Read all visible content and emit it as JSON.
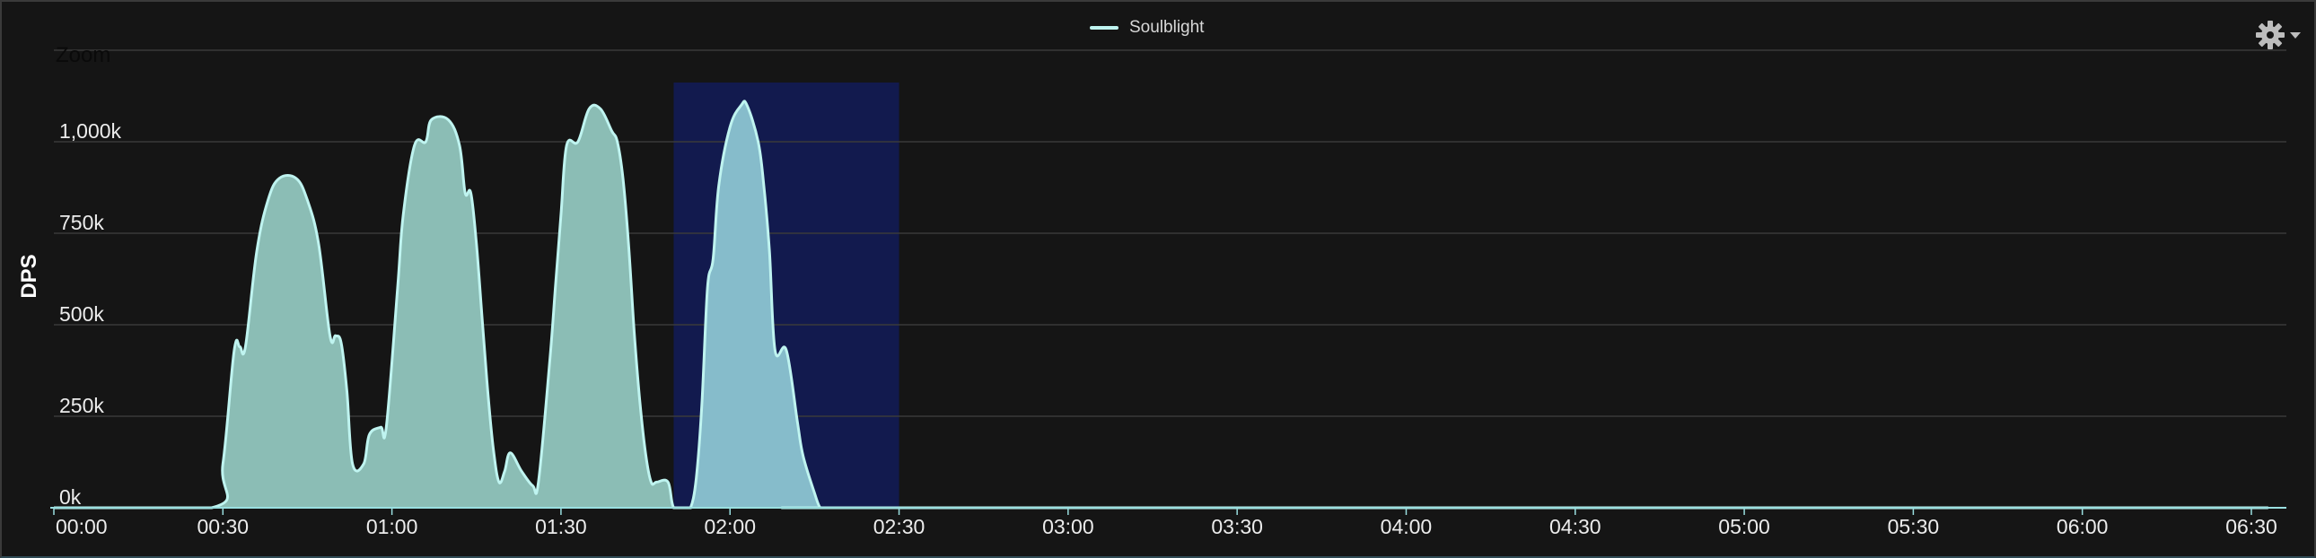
{
  "window": {
    "zoom_label": "Zoom",
    "settings_icon": "gear-icon",
    "dropdown_icon": "caret-down-icon"
  },
  "colors": {
    "background": "#151515",
    "grid": "#3a3a3a",
    "series_line": "#bff4f0",
    "series_fill": "#8bbdb5",
    "selection": "#121a4e",
    "selected_fill": "#86bccb"
  },
  "chart_data": {
    "type": "area",
    "title": "",
    "xlabel": "",
    "ylabel": "DPS",
    "ylim": [
      0,
      1250000
    ],
    "grid": true,
    "legend_position": "top-center",
    "x_ticks": [
      "00:00",
      "00:30",
      "01:00",
      "01:30",
      "02:00",
      "02:30",
      "03:00",
      "03:30",
      "04:00",
      "04:30",
      "05:00",
      "05:30",
      "06:00",
      "06:30"
    ],
    "y_ticks": [
      "0k",
      "250k",
      "500k",
      "750k",
      "1,000k"
    ],
    "selection": {
      "from": "01:50",
      "to": "02:30"
    },
    "series": [
      {
        "name": "Soulblight",
        "x": [
          "00:00",
          "00:28",
          "00:30",
          "00:32",
          "00:33",
          "00:34",
          "00:36",
          "00:38",
          "00:40",
          "00:43",
          "00:45",
          "00:47",
          "00:49",
          "00:50",
          "00:51",
          "00:52",
          "00:53",
          "00:55",
          "00:56",
          "00:58",
          "00:59",
          "01:01",
          "01:02",
          "01:04",
          "01:06",
          "01:07",
          "01:10",
          "01:12",
          "01:13",
          "01:14",
          "01:15",
          "01:16",
          "01:17",
          "01:18",
          "01:19",
          "01:20",
          "01:21",
          "01:23",
          "01:25",
          "01:26",
          "01:28",
          "01:29",
          "01:30",
          "01:31",
          "01:33",
          "01:35",
          "01:37",
          "01:39",
          "01:40",
          "01:41",
          "01:42",
          "01:43",
          "01:44",
          "01:45",
          "01:46",
          "01:47",
          "01:49",
          "01:50",
          "01:52",
          "01:53",
          "01:54",
          "01:55",
          "01:56",
          "01:57",
          "01:58",
          "02:00",
          "02:02",
          "02:03",
          "02:05",
          "02:06",
          "02:07",
          "02:08",
          "02:10",
          "02:12",
          "02:13",
          "02:15",
          "02:16",
          "02:17",
          "02:19",
          "02:20",
          "02:21",
          "02:22",
          "02:25",
          "02:27",
          "02:28",
          "02:29",
          "06:33"
        ],
        "y": [
          0,
          0,
          120000,
          430000,
          440000,
          440000,
          700000,
          840000,
          900000,
          900000,
          840000,
          720000,
          470000,
          470000,
          450000,
          320000,
          120000,
          120000,
          200000,
          220000,
          220000,
          600000,
          800000,
          990000,
          1000000,
          1060000,
          1060000,
          990000,
          860000,
          860000,
          720000,
          520000,
          320000,
          160000,
          70000,
          100000,
          150000,
          100000,
          60000,
          70000,
          400000,
          600000,
          800000,
          990000,
          1000000,
          1090000,
          1090000,
          1030000,
          1000000,
          900000,
          720000,
          480000,
          290000,
          150000,
          70000,
          70000,
          70000,
          0,
          0,
          0,
          80000,
          280000,
          600000,
          680000,
          880000,
          1040000,
          1100000,
          1100000,
          1000000,
          880000,
          700000,
          430000,
          430000,
          230000,
          140000,
          40000,
          0,
          0,
          0,
          0,
          0,
          0,
          0,
          0,
          0,
          0,
          0
        ]
      }
    ]
  }
}
